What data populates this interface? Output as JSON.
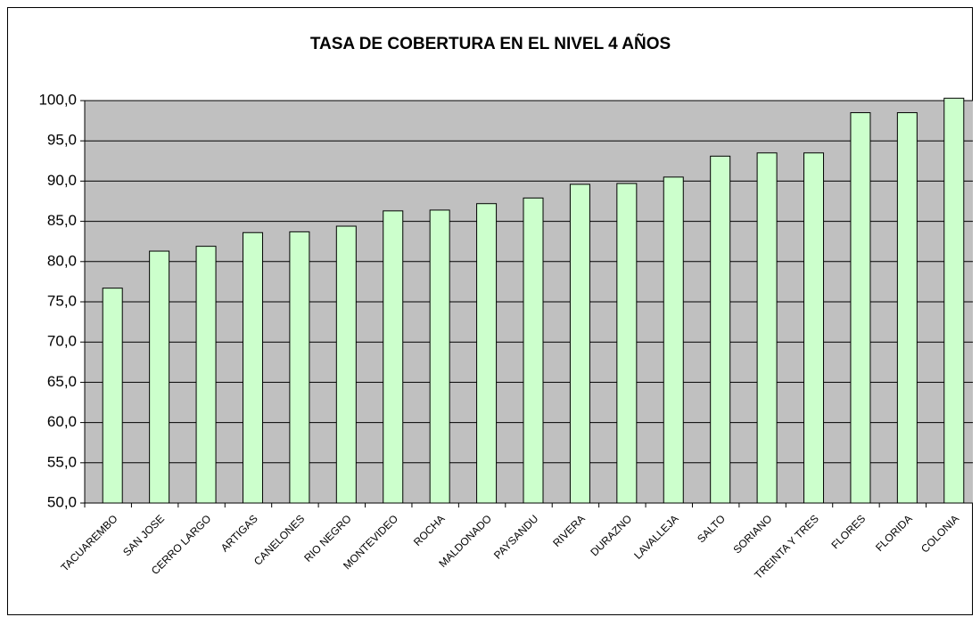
{
  "chart_data": {
    "type": "bar",
    "title": "TASA DE COBERTURA EN EL NIVEL 4 AÑOS",
    "categories": [
      "TACUAREMBO",
      "SAN JOSE",
      "CERRO LARGO",
      "ARTIGAS",
      "CANELONES",
      "RIO NEGRO",
      "MONTEVIDEO",
      "ROCHA",
      "MALDONADO",
      "PAYSANDU",
      "RIVERA",
      "DURAZNO",
      "LAVALLEJA",
      "SALTO",
      "SORIANO",
      "TREINTA Y TRES",
      "FLORES",
      "FLORIDA",
      "COLONIA"
    ],
    "values": [
      76.7,
      81.3,
      81.9,
      83.6,
      83.7,
      84.4,
      86.3,
      86.4,
      87.2,
      87.9,
      89.6,
      89.7,
      90.5,
      93.1,
      93.5,
      93.5,
      98.5,
      98.5,
      100.3
    ],
    "color": "#ccffcc",
    "ylim": [
      50,
      100
    ],
    "yticks": [
      {
        "value": 50,
        "label": "50,0"
      },
      {
        "value": 55,
        "label": "55,0"
      },
      {
        "value": 60,
        "label": "60,0"
      },
      {
        "value": 65,
        "label": "65,0"
      },
      {
        "value": 70,
        "label": "70,0"
      },
      {
        "value": 75,
        "label": "75,0"
      },
      {
        "value": 80,
        "label": "80,0"
      },
      {
        "value": 85,
        "label": "85,0"
      },
      {
        "value": 90,
        "label": "90,0"
      },
      {
        "value": 95,
        "label": "95,0"
      },
      {
        "value": 100,
        "label": "100,0"
      }
    ],
    "grid": true
  }
}
